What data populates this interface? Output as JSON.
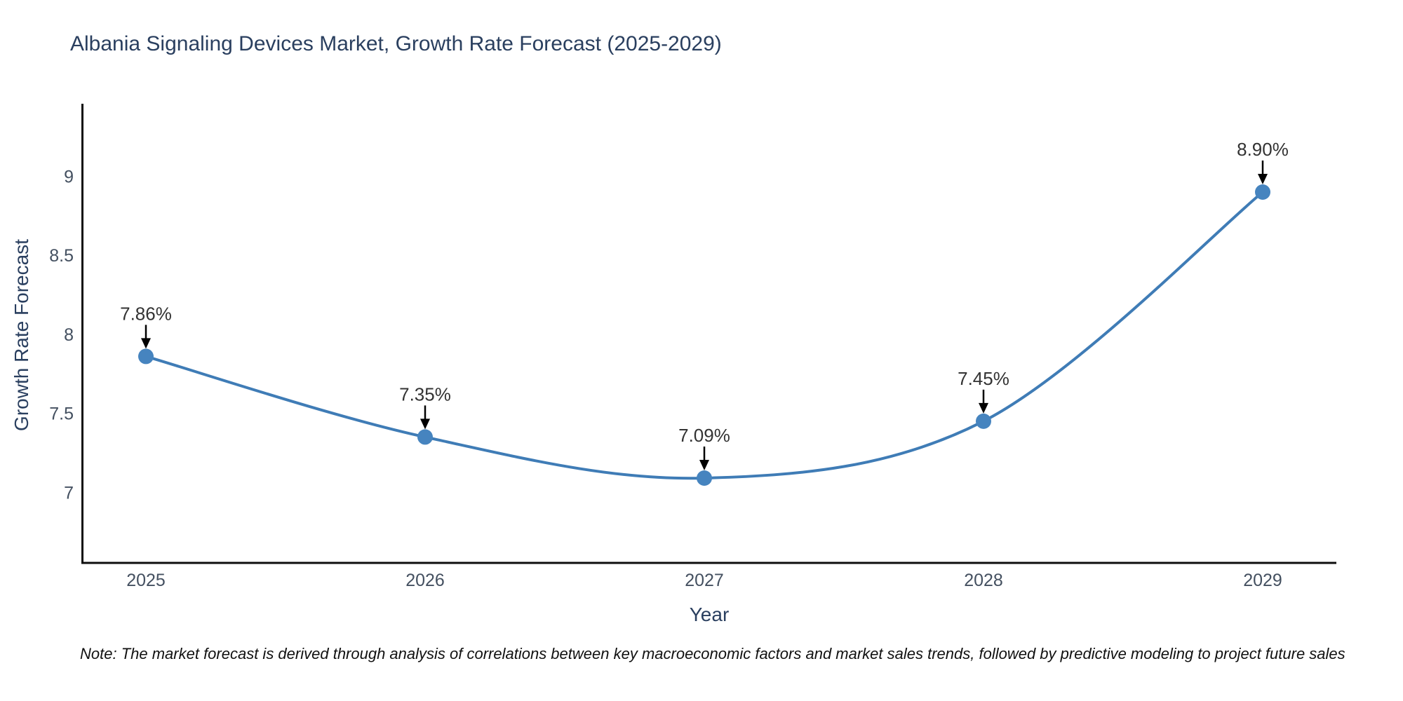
{
  "header": {
    "title": "Albania Signaling Devices Market, Growth Rate Forecast (2025-2029)"
  },
  "chart_data": {
    "type": "line",
    "title": "Albania Signaling Devices Market, Growth Rate Forecast (2025-2029)",
    "xlabel": "Year",
    "ylabel": "Growth Rate Forecast",
    "categories": [
      "2025",
      "2026",
      "2027",
      "2028",
      "2029"
    ],
    "series": [
      {
        "name": "Growth Rate Forecast",
        "values": [
          7.86,
          7.35,
          7.09,
          7.45,
          8.9
        ],
        "point_labels": [
          "7.86%",
          "7.35%",
          "7.09%",
          "7.45%",
          "8.90%"
        ]
      }
    ],
    "yticks": [
      7,
      7.5,
      8,
      8.5,
      9
    ],
    "ytick_labels": [
      "7",
      "7.5",
      "8",
      "8.5",
      "9"
    ],
    "ylim": [
      6.54,
      9.45
    ],
    "grid": false,
    "legend": "none",
    "line_shape": "spline",
    "colors": {
      "line": "#3f7cb6",
      "marker": "#4684bf",
      "axis": "#0d0d0d",
      "annotation_arrow": "#000000",
      "annotation_text": "#333333",
      "title_text": "#2a3f5f"
    }
  },
  "note": {
    "text": "Note: The market forecast is derived through analysis of correlations between key macroeconomic factors and market sales trends, followed by predictive modeling to project future sales"
  }
}
